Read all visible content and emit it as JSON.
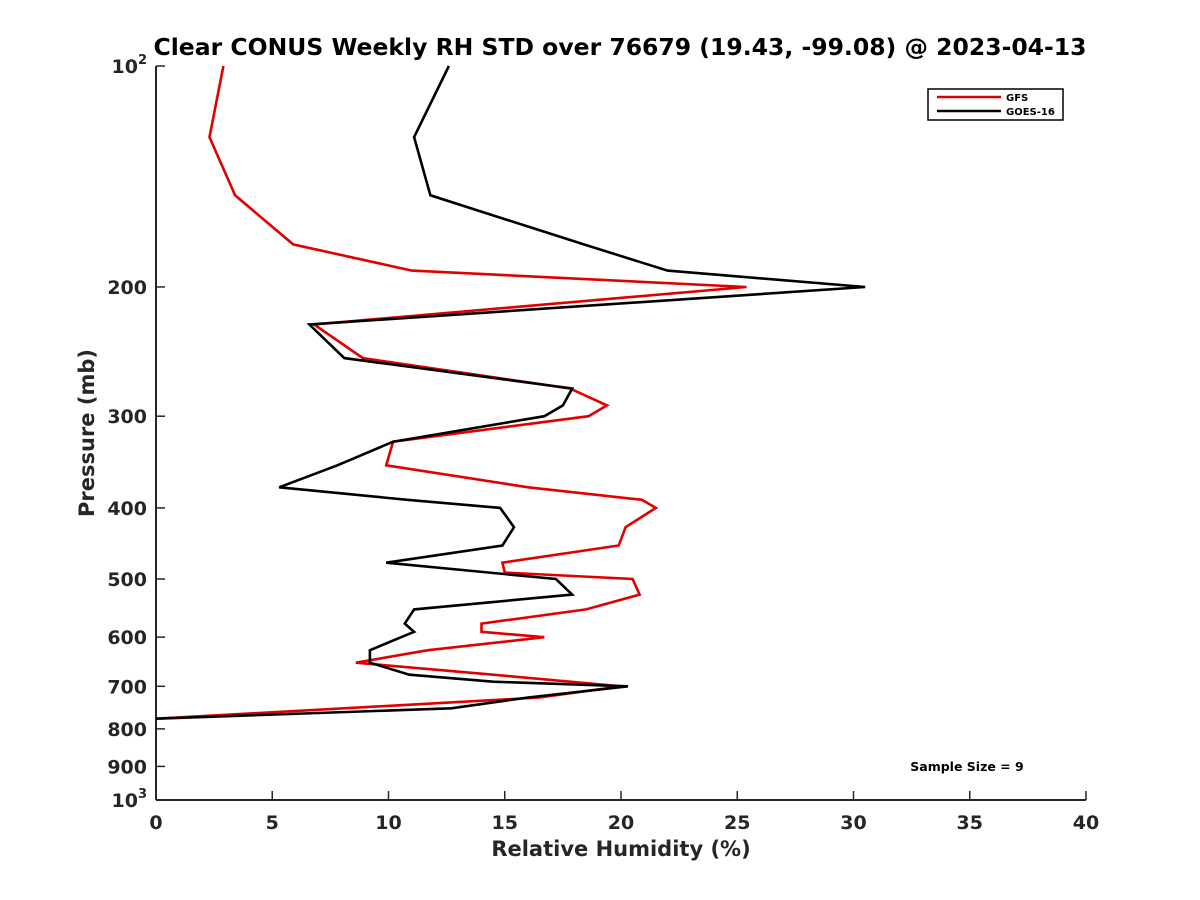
{
  "chart_data": {
    "type": "line",
    "title": "Clear CONUS Weekly RH STD over 76679 (19.43, -99.08) @ 2023-04-13",
    "xlabel": "Relative Humidity (%)",
    "ylabel": "Pressure (mb)",
    "xlim": [
      0,
      40
    ],
    "ylim": [
      100,
      1000
    ],
    "y_scale": "log",
    "y_reversed": true,
    "grid": false,
    "legend_position": "top-right",
    "x_ticks": [
      "0",
      "5",
      "10",
      "15",
      "20",
      "25",
      "30",
      "35",
      "40"
    ],
    "y_ticks": [
      {
        "value": 100,
        "base": "10",
        "exp": "2"
      },
      {
        "value": 200,
        "label": "200"
      },
      {
        "value": 300,
        "label": "300"
      },
      {
        "value": 400,
        "label": "400"
      },
      {
        "value": 500,
        "label": "500"
      },
      {
        "value": 600,
        "label": "600"
      },
      {
        "value": 700,
        "label": "700"
      },
      {
        "value": 800,
        "label": "800"
      },
      {
        "value": 900,
        "label": "900"
      },
      {
        "value": 1000,
        "base": "10",
        "exp": "3"
      }
    ],
    "annotation": "Sample Size = 9",
    "series": [
      {
        "name": "GFS",
        "color": "#e00000",
        "points": [
          [
            2.9,
            100
          ],
          [
            2.3,
            125
          ],
          [
            3.4,
            150
          ],
          [
            5.9,
            175
          ],
          [
            11.0,
            190
          ],
          [
            25.4,
            200
          ],
          [
            6.8,
            225
          ],
          [
            8.9,
            250
          ],
          [
            17.8,
            275
          ],
          [
            19.4,
            290
          ],
          [
            18.6,
            300
          ],
          [
            10.2,
            325
          ],
          [
            9.9,
            350
          ],
          [
            16.0,
            375
          ],
          [
            20.9,
            390
          ],
          [
            21.5,
            400
          ],
          [
            20.2,
            425
          ],
          [
            19.9,
            450
          ],
          [
            14.9,
            475
          ],
          [
            15.0,
            490
          ],
          [
            20.5,
            500
          ],
          [
            20.8,
            525
          ],
          [
            18.5,
            550
          ],
          [
            14.0,
            575
          ],
          [
            14.0,
            590
          ],
          [
            16.7,
            600
          ],
          [
            11.7,
            625
          ],
          [
            8.6,
            650
          ],
          [
            14.5,
            675
          ],
          [
            20.0,
            700
          ],
          [
            16.5,
            725
          ],
          [
            0.0,
            775
          ]
        ]
      },
      {
        "name": "GOES-16",
        "color": "#000000",
        "points": [
          [
            12.6,
            100
          ],
          [
            11.1,
            125
          ],
          [
            11.8,
            150
          ],
          [
            18.4,
            175
          ],
          [
            22.0,
            190
          ],
          [
            30.5,
            200
          ],
          [
            6.6,
            225
          ],
          [
            8.1,
            250
          ],
          [
            17.9,
            275
          ],
          [
            17.5,
            290
          ],
          [
            16.7,
            300
          ],
          [
            10.2,
            325
          ],
          [
            7.8,
            350
          ],
          [
            5.3,
            375
          ],
          [
            10.8,
            390
          ],
          [
            14.8,
            400
          ],
          [
            15.4,
            425
          ],
          [
            14.9,
            450
          ],
          [
            9.9,
            475
          ],
          [
            17.2,
            500
          ],
          [
            17.9,
            525
          ],
          [
            11.1,
            550
          ],
          [
            10.7,
            575
          ],
          [
            11.1,
            590
          ],
          [
            9.2,
            625
          ],
          [
            9.2,
            650
          ],
          [
            10.9,
            675
          ],
          [
            14.5,
            690
          ],
          [
            20.3,
            700
          ],
          [
            16.0,
            725
          ],
          [
            12.7,
            750
          ],
          [
            0.0,
            775
          ]
        ]
      }
    ]
  }
}
